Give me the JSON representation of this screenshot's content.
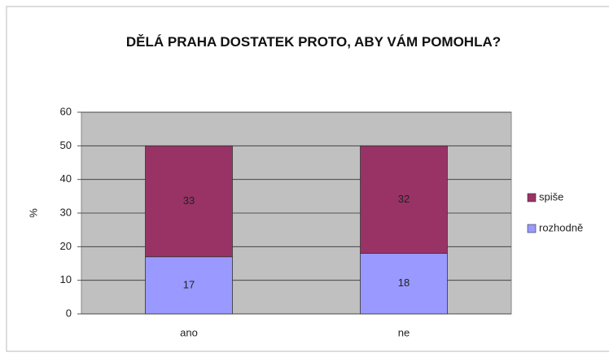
{
  "chart_data": {
    "type": "stacked_bar",
    "title": "DĚLÁ PRAHA DOSTATEK PROTO, ABY VÁM POMOHLA?",
    "y_label": "%",
    "categories": [
      "ano",
      "ne"
    ],
    "series": [
      {
        "name": "rozhodně",
        "color": "#9999ff",
        "values": [
          17,
          18
        ]
      },
      {
        "name": "spiše",
        "color": "#993366",
        "values": [
          33,
          32
        ]
      }
    ],
    "ylim": [
      0,
      60
    ],
    "yticks": [
      0,
      10,
      20,
      30,
      40,
      50,
      60
    ],
    "grid": true,
    "legend": "right"
  }
}
